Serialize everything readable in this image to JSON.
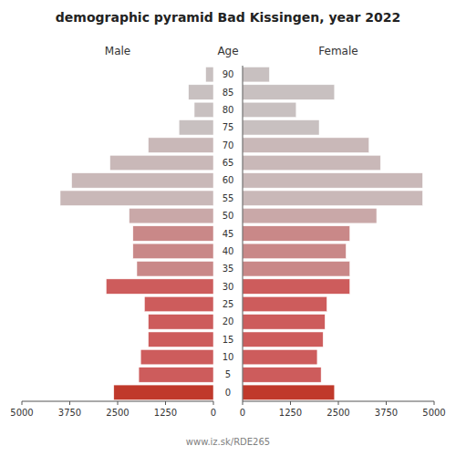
{
  "chart_data": {
    "type": "bar",
    "orientation": "horizontal",
    "title": "demographic pyramid Bad Kissingen, year 2022",
    "ylabel": "Age",
    "annotations": [
      "www.iz.sk/RDE265"
    ],
    "categories": [
      "0",
      "5",
      "10",
      "15",
      "20",
      "25",
      "30",
      "35",
      "40",
      "45",
      "50",
      "55",
      "60",
      "65",
      "70",
      "75",
      "80",
      "85",
      "90"
    ],
    "series": [
      {
        "name": "Male",
        "values": [
          2600,
          1950,
          1900,
          1700,
          1700,
          1800,
          2800,
          2000,
          2100,
          2100,
          2200,
          4000,
          3700,
          2700,
          1700,
          900,
          500,
          650,
          200
        ],
        "colors": [
          "#c0392b",
          "#cd5c5c",
          "#cd5c5c",
          "#cd5c5c",
          "#cd5c5c",
          "#cd5c5c",
          "#cd5c5c",
          "#c98888",
          "#c98888",
          "#c98888",
          "#c9a8a8",
          "#c9b8b8",
          "#c9b8b8",
          "#c9b8b8",
          "#c9b8b8",
          "#c8c0c0",
          "#c8c0c0",
          "#c8c0c0",
          "#c8c0c0"
        ]
      },
      {
        "name": "Female",
        "values": [
          2400,
          2050,
          1950,
          2100,
          2150,
          2200,
          2800,
          2800,
          2700,
          2800,
          3500,
          4700,
          4700,
          3600,
          3300,
          2000,
          1400,
          2400,
          700
        ],
        "colors": [
          "#c0392b",
          "#cd5c5c",
          "#cd5c5c",
          "#cd5c5c",
          "#cd5c5c",
          "#cd5c5c",
          "#cd5c5c",
          "#c98888",
          "#c98888",
          "#c98888",
          "#c9a8a8",
          "#c9b8b8",
          "#c9b8b8",
          "#c9b8b8",
          "#c9b8b8",
          "#c8c0c0",
          "#c8c0c0",
          "#c8c0c0",
          "#c8c0c0"
        ]
      }
    ],
    "xlim": [
      0,
      5000
    ],
    "xticks": [
      0,
      1250,
      2500,
      3750,
      5000
    ],
    "grid": false
  }
}
